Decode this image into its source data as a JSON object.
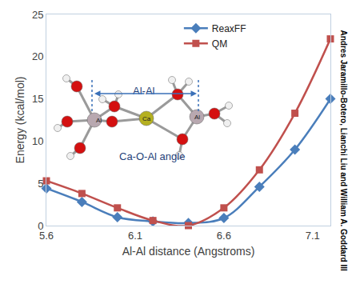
{
  "chart_data": {
    "type": "line",
    "xlabel": "Al-Al distance (Angstroms)",
    "ylabel": "Energy (kcal/mol)",
    "x": [
      5.6,
      5.8,
      6.0,
      6.2,
      6.4,
      6.6,
      6.8,
      7.0,
      7.2
    ],
    "series": [
      {
        "name": "ReaxFF",
        "color": "#4a7ebb",
        "marker": "diamond",
        "values": [
          4.4,
          2.8,
          1.0,
          0.5,
          0.3,
          0.9,
          4.6,
          9.0,
          15.0
        ]
      },
      {
        "name": "QM",
        "color": "#c0504d",
        "marker": "square",
        "values": [
          5.3,
          3.8,
          2.1,
          0.6,
          0.0,
          2.1,
          6.6,
          13.3,
          22.1
        ]
      }
    ],
    "line_style": "smooth",
    "xlim": [
      5.6,
      7.2
    ],
    "xticks": [
      5.6,
      6.1,
      6.6,
      7.1
    ],
    "ylim": [
      0,
      25
    ],
    "yticks": [
      0,
      5,
      10,
      15,
      20,
      25
    ],
    "grid": false,
    "legend": "top",
    "annotations": [
      "Al-Al",
      "Ca-O-Al angle",
      "Al",
      "Ca",
      "Al"
    ],
    "credit": "Andres Jaramillo-Botero, Lianchi Liu and William A. Goddard III"
  }
}
